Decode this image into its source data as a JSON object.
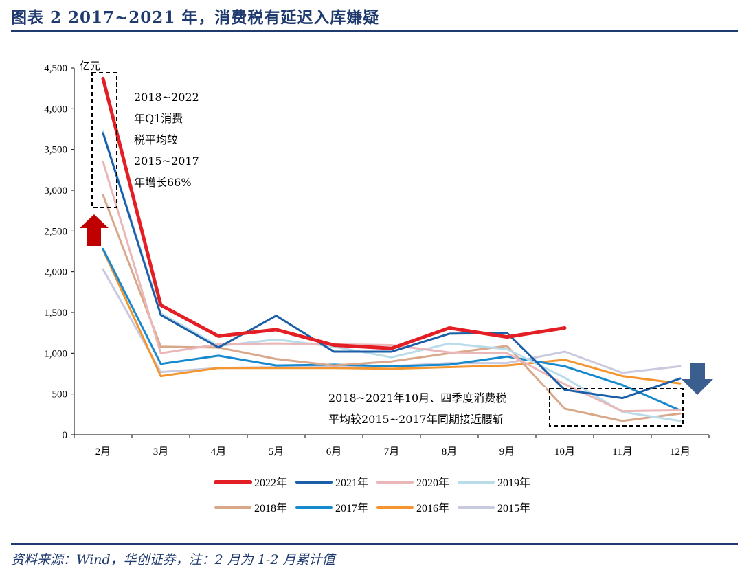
{
  "figure": {
    "title": "图表 2   2017~2021 年，消费税有延迟入库嫌疑",
    "source": "资料来源：Wind，华创证券，注：2 月为 1-2 月累计值"
  },
  "colors": {
    "header_blue": "#1f3a6e",
    "up_arrow": "#c00000",
    "down_arrow": "#3a5f8f"
  },
  "chart_data": {
    "type": "line",
    "unit_label": "亿元",
    "categories": [
      "2月",
      "3月",
      "4月",
      "5月",
      "6月",
      "7月",
      "8月",
      "9月",
      "10月",
      "11月",
      "12月"
    ],
    "ylim": [
      0,
      4500
    ],
    "yticks": [
      "0",
      "500",
      "1,000",
      "1,500",
      "2,000",
      "2,500",
      "3,000",
      "3,500",
      "4,000",
      "4,500"
    ],
    "ytick_values": [
      0,
      500,
      1000,
      1500,
      2000,
      2500,
      3000,
      3500,
      4000,
      4500
    ],
    "grid": false,
    "legend_position": "bottom",
    "series": [
      {
        "name": "2022年",
        "color": "#e31e24",
        "width": 5,
        "values": [
          4370,
          1590,
          1210,
          1290,
          1100,
          1060,
          1310,
          1200,
          1310,
          null,
          null
        ]
      },
      {
        "name": "2021年",
        "color": "#1b5fa8",
        "width": 3,
        "values": [
          3700,
          1470,
          1070,
          1460,
          1020,
          1020,
          1240,
          1250,
          550,
          450,
          690
        ]
      },
      {
        "name": "2020年",
        "color": "#eab6b8",
        "width": 3,
        "values": [
          3350,
          1000,
          1110,
          1120,
          1110,
          1100,
          1010,
          1000,
          620,
          290,
          300
        ]
      },
      {
        "name": "2019年",
        "color": "#b9dbea",
        "width": 3,
        "values": [
          3720,
          1490,
          1090,
          1170,
          1080,
          950,
          1120,
          1050,
          700,
          280,
          170
        ]
      },
      {
        "name": "2018年",
        "color": "#d9a88a",
        "width": 3,
        "values": [
          2940,
          1080,
          1070,
          930,
          850,
          900,
          1000,
          1090,
          320,
          170,
          260
        ]
      },
      {
        "name": "2017年",
        "color": "#1689cf",
        "width": 3,
        "values": [
          2280,
          870,
          970,
          850,
          860,
          840,
          860,
          960,
          840,
          610,
          300
        ]
      },
      {
        "name": "2016年",
        "color": "#f4952f",
        "width": 3,
        "values": [
          2270,
          720,
          820,
          820,
          820,
          810,
          830,
          850,
          920,
          720,
          630
        ]
      },
      {
        "name": "2015年",
        "color": "#c9c9e0",
        "width": 3,
        "values": [
          2030,
          770,
          820,
          830,
          840,
          840,
          880,
          880,
          1020,
          760,
          840
        ]
      }
    ],
    "annotations": [
      {
        "lines": [
          "2018~2022",
          "年Q1消费",
          "税平均较",
          "2015~2017",
          "年增长66%"
        ]
      },
      {
        "lines": [
          "2018~2021年10月、四季度消费税",
          "平均较2015~2017年同期接近腰斩"
        ]
      }
    ]
  }
}
